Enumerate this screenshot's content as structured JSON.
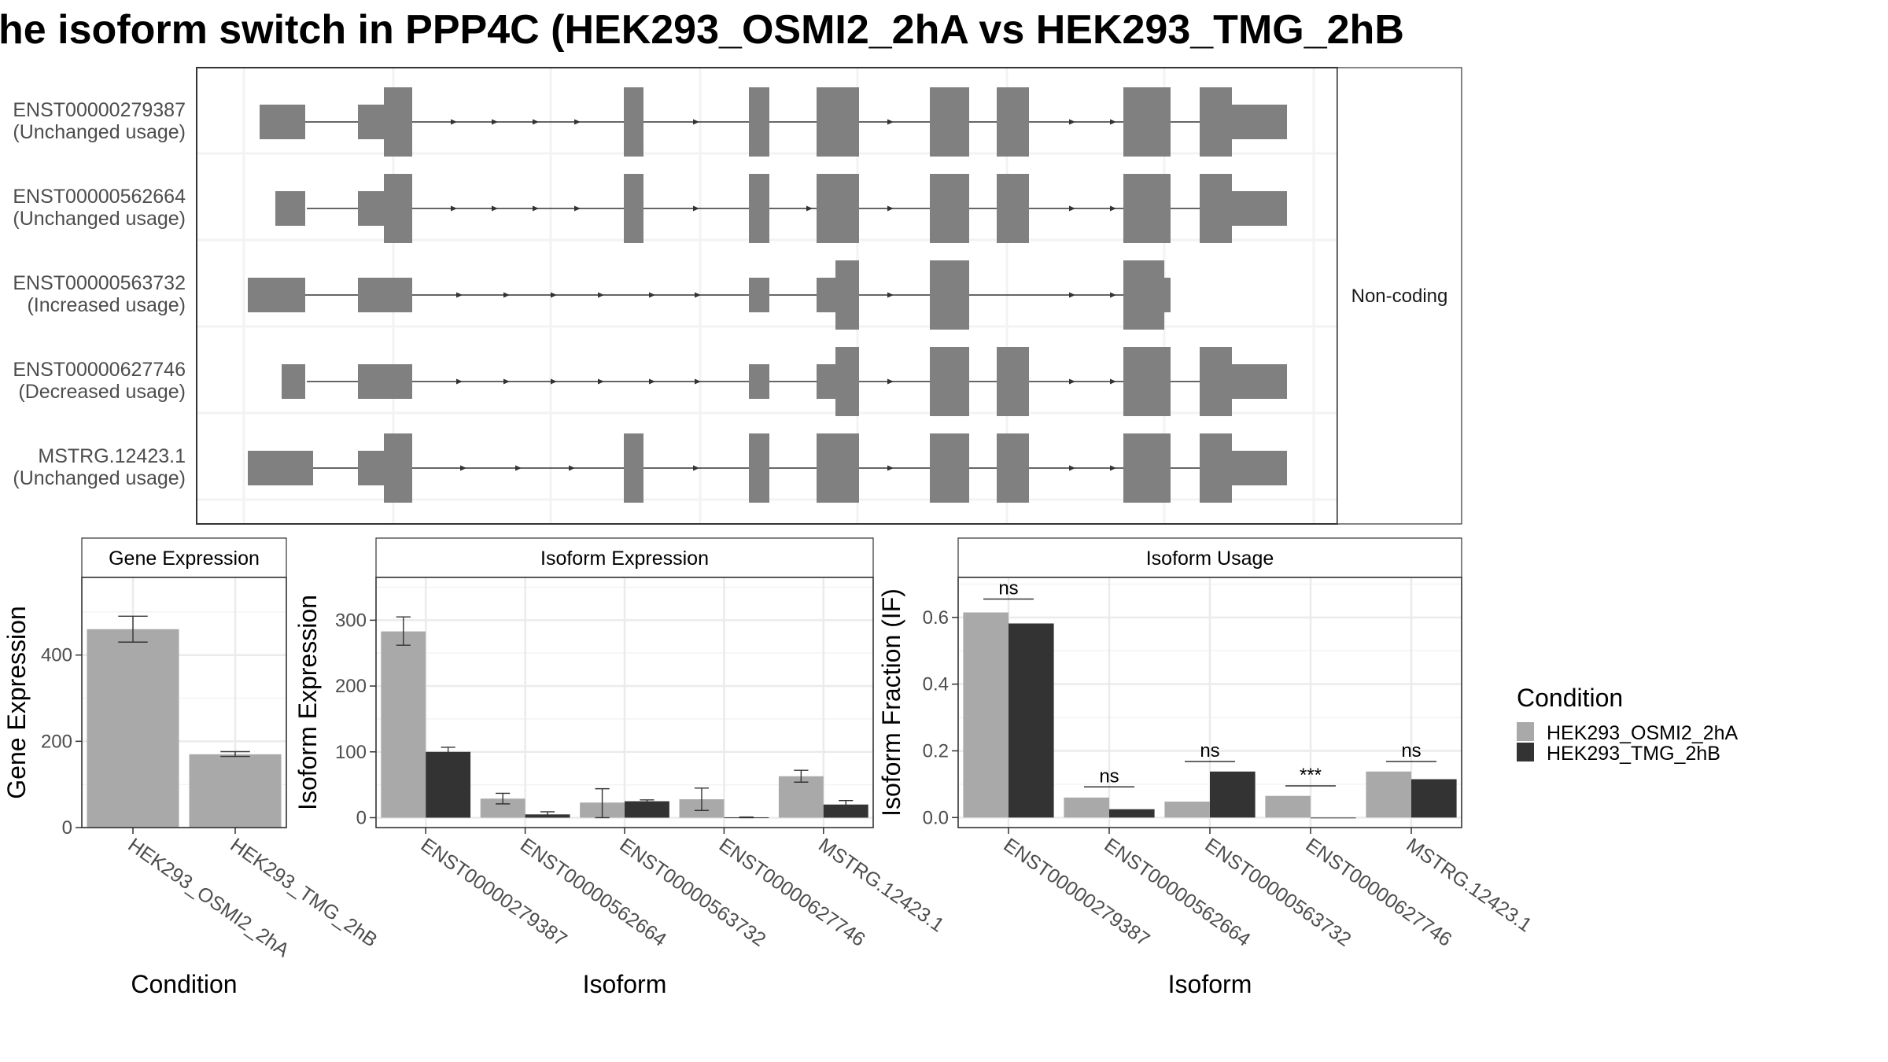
{
  "title": "he isoform switch in PPP4C (HEK293_OSMI2_2hA vs HEK293_TMG_2hB",
  "colors": {
    "exon": "#808080",
    "cond_a": "#a9a9a9",
    "cond_b": "#333333",
    "grid": "#ebebeb",
    "panel_border": "#333333",
    "strip_fill": "#ffffff"
  },
  "chart_data": [
    {
      "type": "transcript_structure",
      "strip_label": "Non-coding",
      "transcripts": [
        {
          "id": "ENST00000279387",
          "status": "(Unchanged usage)"
        },
        {
          "id": "ENST00000562664",
          "status": "(Unchanged usage)"
        },
        {
          "id": "ENST00000563732",
          "status": "(Increased usage)"
        },
        {
          "id": "ENST00000627746",
          "status": "(Decreased usage)"
        },
        {
          "id": "MSTRG.12423.1",
          "status": "(Unchanged usage)"
        }
      ]
    },
    {
      "type": "bar",
      "title": "Gene Expression",
      "xlabel": "Condition",
      "ylabel": "Gene Expression",
      "ylim": [
        0,
        580
      ],
      "yticks": [
        0,
        200,
        400
      ],
      "categories": [
        "HEK293_OSMI2_2hA",
        "HEK293_TMG_2hB"
      ],
      "values": [
        460,
        170
      ],
      "errors": [
        [
          430,
          490
        ],
        [
          165,
          176
        ]
      ]
    },
    {
      "type": "bar",
      "title": "Isoform Expression",
      "xlabel": "Isoform",
      "ylabel": "Isoform Expression",
      "ylim": [
        -15,
        365
      ],
      "yticks": [
        0,
        100,
        200,
        300
      ],
      "categories": [
        "ENST00000279387",
        "ENST00000562664",
        "ENST00000563732",
        "ENST00000627746",
        "MSTRG.12423.1"
      ],
      "series": [
        {
          "values": [
            283,
            29,
            23,
            28,
            63
          ],
          "errors": [
            [
              262,
              305
            ],
            [
              21,
              37
            ],
            [
              0,
              44
            ],
            [
              11,
              45
            ],
            [
              54,
              72
            ]
          ]
        },
        {
          "values": [
            100,
            5,
            25,
            0.5,
            20
          ],
          "errors": [
            [
              93,
              107
            ],
            [
              2,
              9
            ],
            [
              23,
              27
            ],
            [
              0,
              1
            ],
            [
              14,
              26
            ]
          ]
        }
      ]
    },
    {
      "type": "bar",
      "title": "Isoform Usage",
      "xlabel": "Isoform",
      "ylabel": "Isoform Fraction (IF)",
      "ylim": [
        -0.03,
        0.72
      ],
      "yticks": [
        "0.0",
        "0.2",
        "0.4",
        "0.6"
      ],
      "categories": [
        "ENST00000279387",
        "ENST00000562664",
        "ENST00000563732",
        "ENST00000627746",
        "MSTRG.12423.1"
      ],
      "series": [
        {
          "values": [
            0.615,
            0.06,
            0.048,
            0.065,
            0.138
          ]
        },
        {
          "values": [
            0.582,
            0.025,
            0.138,
            0.0,
            0.115
          ]
        }
      ],
      "significance": [
        "ns",
        "ns",
        "ns",
        "***",
        "ns"
      ],
      "significance_y": [
        0.655,
        0.092,
        0.168,
        0.095,
        0.168
      ]
    }
  ],
  "legend": {
    "title": "Condition",
    "items": [
      "HEK293_OSMI2_2hA",
      "HEK293_TMG_2hB"
    ]
  }
}
